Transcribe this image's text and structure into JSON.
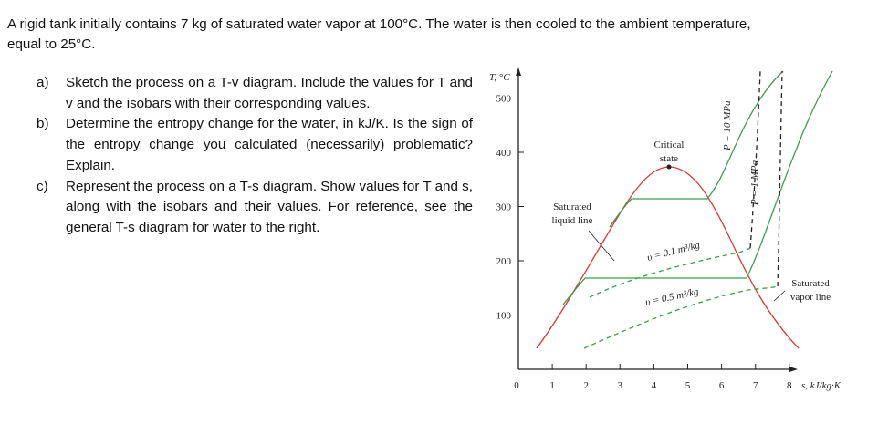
{
  "problem": {
    "intro": "A rigid tank initially contains 7 kg of saturated water vapor at 100°C.  The water is then cooled to the ambient temperature, equal to 25°C.",
    "parts": [
      {
        "label": "a)",
        "text": "Sketch the process on a T-v diagram. Include the values for T and v and the isobars with their corresponding values."
      },
      {
        "label": "b)",
        "text": "Determine the entropy change for the water, in kJ/K. Is the sign of the entropy change you calculated (necessarily) problematic? Explain."
      },
      {
        "label": "c)",
        "text": "Represent the process on a T-s diagram. Show values for T and s, along with the isobars and their values. For reference, see the general T-s diagram for water to the right."
      }
    ]
  },
  "figure": {
    "y_axis_label": "T, °C",
    "x_axis_label": "s, kJ/kg·K",
    "yticks": [
      100,
      200,
      300,
      400,
      500
    ],
    "xticks": [
      0,
      1,
      2,
      3,
      4,
      5,
      6,
      7,
      8
    ],
    "critical_label": [
      "Critical",
      "state"
    ],
    "liquid_label": [
      "Saturated",
      "liquid line"
    ],
    "vapor_label": [
      "Saturated",
      "vapor line"
    ],
    "v1_label": "υ = 0.1 m³/kg",
    "v2_label": "υ = 0.5 m³/kg",
    "p1_label": "P = 10 MPa",
    "p2_label": "P = 1 MPa"
  }
}
